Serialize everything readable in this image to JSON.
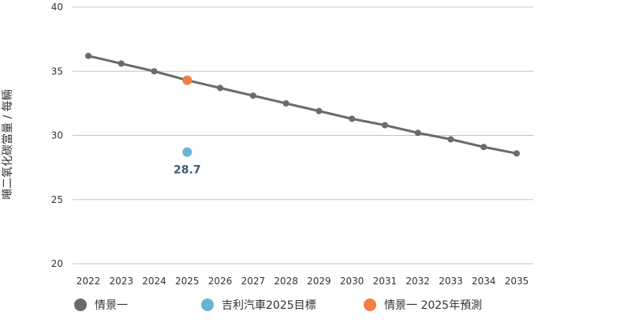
{
  "chart_data": {
    "type": "line",
    "ylabel": "噸二氧化碳當量 / 每輛",
    "ylim": [
      20,
      40
    ],
    "yticks": [
      "20",
      "25",
      "30",
      "35",
      "40"
    ],
    "categories": [
      "2022",
      "2023",
      "2024",
      "2025",
      "2026",
      "2027",
      "2028",
      "2029",
      "2030",
      "2031",
      "2032",
      "2033",
      "2034",
      "2035"
    ],
    "grid": "horizontal",
    "legend_position": "bottom",
    "series": [
      {
        "name": "情景一",
        "color": "#6b6b6b",
        "values": [
          36.2,
          35.6,
          35.0,
          34.3,
          33.7,
          33.1,
          32.5,
          31.9,
          31.3,
          30.8,
          30.2,
          29.7,
          29.1,
          28.6
        ]
      },
      {
        "name": "吉利汽車2025目標",
        "color": "#6bb3d4",
        "points": [
          {
            "x": "2025",
            "y": 28.7,
            "label": "28.7"
          }
        ]
      },
      {
        "name": "情景一 2025年預測",
        "color": "#f07f45",
        "points": [
          {
            "x": "2025",
            "y": 34.3
          }
        ]
      }
    ]
  }
}
